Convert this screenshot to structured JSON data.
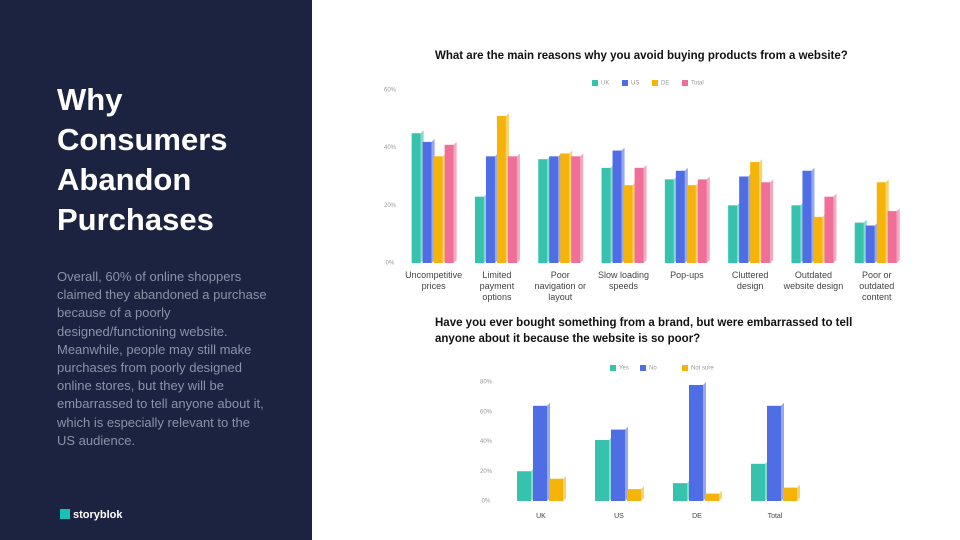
{
  "slide": {
    "title": "Why Consumers Abandon Purchases",
    "body": "Overall, 60% of online shoppers claimed they abandoned a purchase because of a poorly designed/functioning website. Meanwhile, people may still make purchases from poorly designed online stores, but they will be embarrassed to tell anyone about it, which is especially relevant to the US audience.",
    "logo": "storyblok"
  },
  "chart_data": [
    {
      "type": "bar",
      "title": "What are the main reasons why you avoid buying products from a website?",
      "categories": [
        "Uncompetitive prices",
        "Limited payment options",
        "Poor navigation or layout",
        "Slow loading speeds",
        "Pop-ups",
        "Cluttered design",
        "Outdated website design",
        "Poor or outdated content"
      ],
      "series": [
        {
          "name": "UK",
          "color": "#36c2ad",
          "values": [
            45,
            23,
            36,
            33,
            29,
            20,
            20,
            14
          ]
        },
        {
          "name": "US",
          "color": "#4f6ee6",
          "values": [
            42,
            37,
            37,
            39,
            32,
            30,
            32,
            13
          ]
        },
        {
          "name": "DE",
          "color": "#f6b40a",
          "values": [
            37,
            51,
            38,
            27,
            27,
            35,
            16,
            28
          ]
        },
        {
          "name": "Total",
          "color": "#ef6f98",
          "values": [
            41,
            37,
            37,
            33,
            29,
            28,
            23,
            18
          ]
        }
      ],
      "ylim": [
        0,
        60
      ],
      "yticks": [
        {
          "value": 0,
          "label": "0%"
        },
        {
          "value": 20,
          "label": "20%"
        },
        {
          "value": 40,
          "label": "40%"
        },
        {
          "value": 60,
          "label": "60%"
        }
      ]
    },
    {
      "type": "bar",
      "title": "Have you ever bought something from a brand, but were embarrassed to tell anyone about it because the website is so poor?",
      "categories": [
        "UK",
        "US",
        "DE",
        "Total"
      ],
      "series": [
        {
          "name": "Yes",
          "color": "#36c2ad",
          "values": [
            20,
            41,
            12,
            25
          ]
        },
        {
          "name": "No",
          "color": "#4f6ee6",
          "values": [
            64,
            48,
            78,
            64
          ]
        },
        {
          "name": "Not sure",
          "color": "#f6b40a",
          "values": [
            15,
            8,
            5,
            9
          ]
        }
      ],
      "ylim": [
        0,
        80
      ],
      "yticks": [
        {
          "value": 0,
          "label": "0%"
        },
        {
          "value": 20,
          "label": "20%"
        },
        {
          "value": 40,
          "label": "40%"
        },
        {
          "value": 60,
          "label": "60%"
        },
        {
          "value": 80,
          "label": "80%"
        }
      ]
    }
  ]
}
